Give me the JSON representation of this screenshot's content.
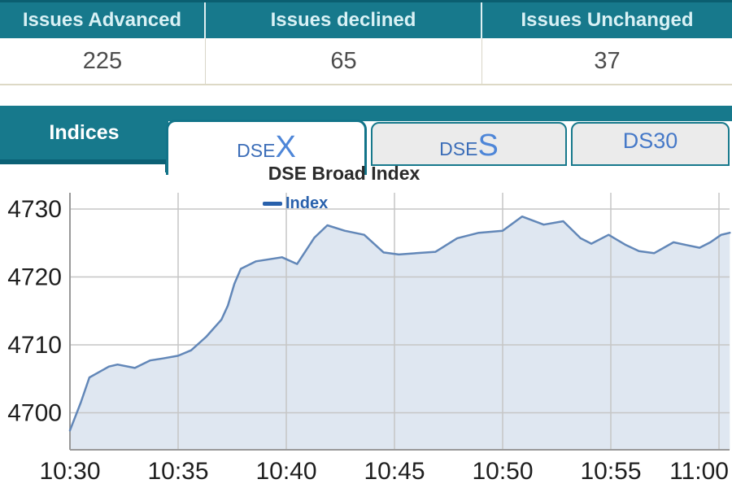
{
  "table": {
    "headers": [
      "Issues Advanced",
      "Issues declined",
      "Issues Unchanged"
    ],
    "values": [
      "225",
      "65",
      "37"
    ]
  },
  "tabs": {
    "indices_label": "Indices",
    "items": [
      {
        "prefix": "DSE",
        "suffix": "X",
        "label": "DSEX",
        "active": true
      },
      {
        "prefix": "DSE",
        "suffix": "S",
        "label": "DSES",
        "active": false
      },
      {
        "prefix": "DS30",
        "suffix": "",
        "label": "DS30",
        "active": false
      }
    ]
  },
  "chart_data": {
    "type": "area",
    "title": "DSE Broad Index",
    "legend": [
      "Index"
    ],
    "series": [
      {
        "name": "Index",
        "points": [
          [
            0.0,
            4697.4
          ],
          [
            0.5,
            4701.5
          ],
          [
            0.9,
            4705.2
          ],
          [
            1.8,
            4706.8
          ],
          [
            2.2,
            4707.1
          ],
          [
            3.0,
            4706.6
          ],
          [
            3.7,
            4707.7
          ],
          [
            4.3,
            4708.0
          ],
          [
            5.0,
            4708.4
          ],
          [
            5.6,
            4709.2
          ],
          [
            6.3,
            4711.2
          ],
          [
            7.0,
            4713.7
          ],
          [
            7.3,
            4715.8
          ],
          [
            7.6,
            4719.0
          ],
          [
            7.9,
            4721.2
          ],
          [
            8.6,
            4722.3
          ],
          [
            9.8,
            4722.9
          ],
          [
            10.5,
            4721.9
          ],
          [
            11.3,
            4725.8
          ],
          [
            11.9,
            4727.6
          ],
          [
            12.7,
            4726.8
          ],
          [
            13.6,
            4726.2
          ],
          [
            14.5,
            4723.6
          ],
          [
            15.2,
            4723.3
          ],
          [
            16.0,
            4723.5
          ],
          [
            16.9,
            4723.7
          ],
          [
            17.9,
            4725.7
          ],
          [
            18.9,
            4726.5
          ],
          [
            20.0,
            4726.8
          ],
          [
            20.9,
            4728.9
          ],
          [
            21.9,
            4727.7
          ],
          [
            22.8,
            4728.2
          ],
          [
            23.6,
            4725.7
          ],
          [
            24.1,
            4724.9
          ],
          [
            24.9,
            4726.2
          ],
          [
            25.7,
            4724.7
          ],
          [
            26.3,
            4723.8
          ],
          [
            27.0,
            4723.5
          ],
          [
            27.9,
            4725.1
          ],
          [
            28.5,
            4724.7
          ],
          [
            29.1,
            4724.3
          ],
          [
            29.6,
            4725.1
          ],
          [
            30.1,
            4726.2
          ],
          [
            30.5,
            4726.5
          ]
        ]
      }
    ],
    "x_ticks_minutes": [
      0,
      5,
      10,
      15,
      20,
      25,
      30
    ],
    "x_tick_labels": [
      "10:30",
      "10:35",
      "10:40",
      "10:45",
      "10:50",
      "10:55",
      "11:00"
    ],
    "y_ticks": [
      4700,
      4710,
      4720,
      4730
    ],
    "xlabel": "",
    "ylabel": "",
    "ylim": [
      4694.6,
      4732.4
    ],
    "xlim_minutes": [
      0,
      30.5
    ],
    "grid": true,
    "legend_position": "top-center",
    "colors": {
      "line": "#6287b8",
      "fill": "#dfe7f1",
      "grid": "#c6c6c6",
      "axis": "#999999",
      "tick_label": "#1e1e1e"
    }
  },
  "colors": {
    "teal": "#17798c",
    "teal_dark": "#0b6175",
    "header_text": "#d9f1f5",
    "tab_blue": "#4679c8",
    "legend_blue": "#2961ac",
    "value_text": "#4d4d4d"
  }
}
